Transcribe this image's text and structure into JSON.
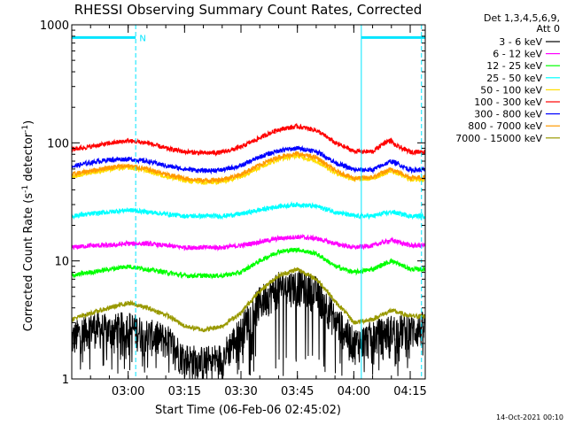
{
  "chart_data": {
    "type": "line",
    "title": "RHESSI Observing Summary Count Rates, Corrected",
    "xlabel": "Start Time (06-Feb-06 02:45:02)",
    "ylabel_main": "Corrected Count Rate (s",
    "ylabel_sup1": "-1",
    "ylabel_mid": " detector",
    "ylabel_sup2": "-1",
    "ylabel_end": ")",
    "yscale": "log",
    "ylim": [
      1,
      1000
    ],
    "xlim_minutes": [
      0,
      94
    ],
    "x_ticks": [
      {
        "minute": 15,
        "label": "03:00"
      },
      {
        "minute": 30,
        "label": "03:15"
      },
      {
        "minute": 45,
        "label": "03:30"
      },
      {
        "minute": 60,
        "label": "03:45"
      },
      {
        "minute": 75,
        "label": "04:00"
      },
      {
        "minute": 90,
        "label": "04:15"
      }
    ],
    "y_ticks": [
      {
        "value": 1,
        "label": "1"
      },
      {
        "value": 10,
        "label": "10"
      },
      {
        "value": 100,
        "label": "100"
      },
      {
        "value": 1000,
        "label": "1000"
      }
    ],
    "legend_header": [
      "Det 1,3,4,5,6,9,",
      "Att 0"
    ],
    "legend_position": "outside-right",
    "flags": {
      "night_segments": [
        [
          0,
          17
        ],
        [
          77,
          94
        ]
      ],
      "night_marker_label": "N",
      "night_marker_minute": 18,
      "night_level": 780,
      "boundary_minutes": [
        17,
        77,
        93
      ]
    },
    "series": [
      {
        "name": "3 - 6 keV",
        "color": "#000000",
        "x": [
          0,
          5,
          10,
          15,
          20,
          25,
          30,
          35,
          40,
          45,
          50,
          55,
          60,
          65,
          70,
          75,
          80,
          85,
          90,
          94
        ],
        "y": [
          2.2,
          2.8,
          2.6,
          2.8,
          2.4,
          2.2,
          1.5,
          1.4,
          1.5,
          2.5,
          4.5,
          6.0,
          6.3,
          5.5,
          3.2,
          2.0,
          2.3,
          2.6,
          2.6,
          2.8
        ],
        "noise_low": 0.5
      },
      {
        "name": "6 - 12 keV",
        "color": "#ff00ff",
        "x": [
          0,
          5,
          10,
          15,
          20,
          25,
          30,
          35,
          40,
          45,
          50,
          55,
          60,
          65,
          70,
          75,
          80,
          85,
          90,
          94
        ],
        "y": [
          13,
          13.5,
          13.5,
          14,
          14,
          13.5,
          13,
          13,
          13,
          13.5,
          14.5,
          15.5,
          16,
          15.5,
          14,
          13,
          13.5,
          15,
          13.5,
          13.5
        ]
      },
      {
        "name": "12 - 25 keV",
        "color": "#00ff00",
        "x": [
          0,
          5,
          10,
          15,
          20,
          25,
          30,
          35,
          40,
          45,
          50,
          55,
          60,
          65,
          70,
          75,
          80,
          85,
          90,
          94
        ],
        "y": [
          7.5,
          8.0,
          8.5,
          9.0,
          8.5,
          8.0,
          7.5,
          7.5,
          7.5,
          8.0,
          10,
          12,
          12.5,
          11.5,
          9,
          8,
          8.5,
          10,
          8.5,
          8.5
        ]
      },
      {
        "name": "25 - 50 keV",
        "color": "#00ffff",
        "x": [
          0,
          5,
          10,
          15,
          20,
          25,
          30,
          35,
          40,
          45,
          50,
          55,
          60,
          65,
          70,
          75,
          80,
          85,
          90,
          94
        ],
        "y": [
          24,
          25,
          26,
          27,
          26,
          25,
          24,
          24,
          24,
          25,
          27,
          29,
          30,
          29,
          26,
          24,
          24,
          26,
          24,
          24
        ]
      },
      {
        "name": "50 - 100 keV",
        "color": "#ffdd00",
        "x": [
          0,
          5,
          10,
          15,
          20,
          25,
          30,
          35,
          40,
          45,
          50,
          55,
          60,
          65,
          70,
          75,
          80,
          85,
          90,
          94
        ],
        "y": [
          52,
          56,
          60,
          62,
          58,
          52,
          48,
          46,
          47,
          52,
          62,
          73,
          78,
          70,
          56,
          49,
          50,
          58,
          49,
          49
        ]
      },
      {
        "name": "100 - 300 keV",
        "color": "#ff0000",
        "x": [
          0,
          5,
          10,
          15,
          20,
          25,
          30,
          35,
          40,
          45,
          50,
          55,
          60,
          65,
          70,
          75,
          80,
          85,
          84,
          86,
          90,
          94
        ],
        "y": [
          88,
          93,
          99,
          104,
          100,
          90,
          84,
          82,
          83,
          92,
          110,
          130,
          138,
          128,
          100,
          85,
          84,
          104,
          104,
          95,
          84,
          84
        ]
      },
      {
        "name": "300 - 800 keV",
        "color": "#0000ff",
        "x": [
          0,
          5,
          10,
          15,
          20,
          25,
          30,
          35,
          40,
          45,
          50,
          55,
          60,
          65,
          70,
          75,
          80,
          85,
          90,
          94
        ],
        "y": [
          63,
          68,
          72,
          73,
          70,
          64,
          60,
          58,
          59,
          64,
          76,
          86,
          90,
          85,
          68,
          59,
          59,
          70,
          59,
          59
        ]
      },
      {
        "name": "800 - 7000 keV",
        "color": "#ff9900",
        "x": [
          0,
          5,
          10,
          15,
          20,
          25,
          30,
          35,
          40,
          45,
          50,
          55,
          60,
          65,
          70,
          75,
          80,
          85,
          90,
          94
        ],
        "y": [
          54,
          58,
          62,
          64,
          60,
          54,
          50,
          48,
          49,
          54,
          65,
          76,
          81,
          75,
          58,
          50,
          51,
          60,
          51,
          51
        ]
      },
      {
        "name": "7000 - 15000 keV",
        "color": "#999900",
        "x": [
          0,
          5,
          10,
          15,
          20,
          25,
          30,
          35,
          40,
          45,
          50,
          55,
          60,
          65,
          70,
          75,
          80,
          85,
          90,
          94
        ],
        "y": [
          3.2,
          3.6,
          4.0,
          4.4,
          4.0,
          3.5,
          2.8,
          2.6,
          2.8,
          3.6,
          5.5,
          7.5,
          8.5,
          7.0,
          4.5,
          3.0,
          3.2,
          3.8,
          3.4,
          3.4
        ]
      }
    ]
  },
  "timestamp": "14-Oct-2021 00:10"
}
